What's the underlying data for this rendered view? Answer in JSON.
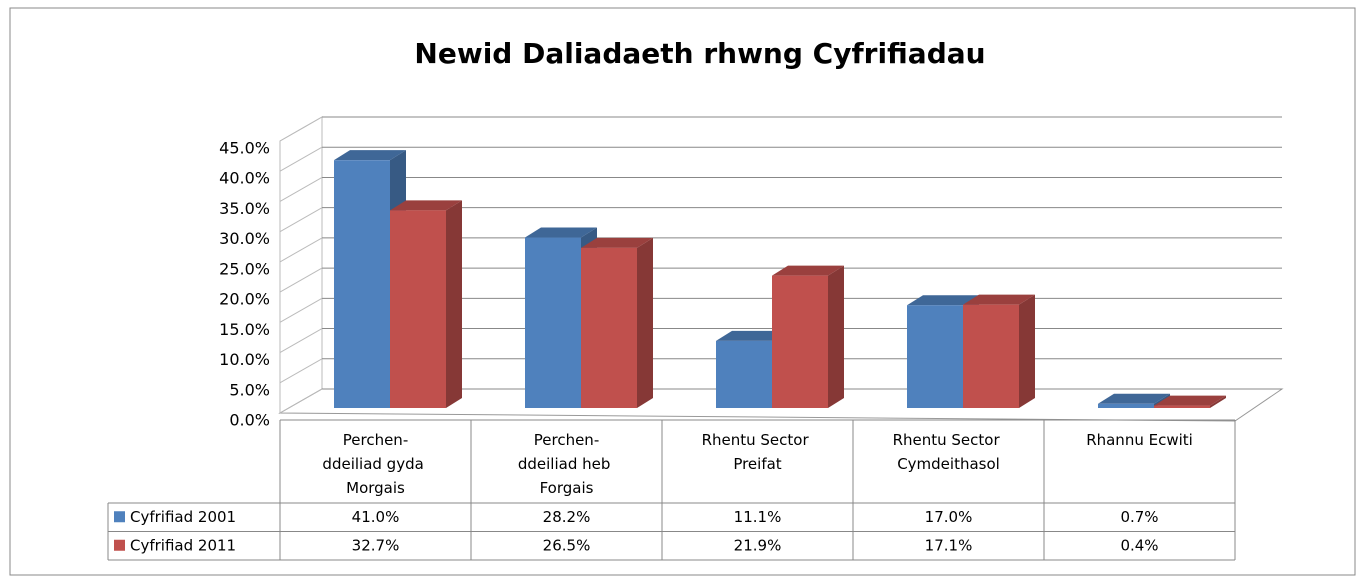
{
  "chart_data": {
    "type": "bar3d",
    "title": "Newid Daliadaeth rhwng Cyfrifiadau",
    "categories": [
      "Perchen-ddeiliad gyda Morgais",
      "Perchen-ddeiliad heb Forgais",
      "Rhentu Sector Preifat",
      "Rhentu Sector Cymdeithasol",
      "Rhannu Ecwiti"
    ],
    "series": [
      {
        "name": "Cyfrifiad 2001",
        "color": "#4f81bd",
        "values": [
          41.0,
          28.2,
          11.1,
          17.0,
          0.7
        ],
        "value_labels": [
          "41.0%",
          "28.2%",
          "11.1%",
          "17.0%",
          "0.7%"
        ]
      },
      {
        "name": "Cyfrifiad 2011",
        "color": "#c0504d",
        "values": [
          32.7,
          26.5,
          21.9,
          17.1,
          0.4
        ],
        "value_labels": [
          "32.7%",
          "26.5%",
          "21.9%",
          "17.1%",
          "0.4%"
        ]
      }
    ],
    "ylim": [
      0,
      45
    ],
    "yticks": [
      {
        "value": 0,
        "label": "0.0%"
      },
      {
        "value": 5,
        "label": "5.0%"
      },
      {
        "value": 10,
        "label": "10.0%"
      },
      {
        "value": 15,
        "label": "15.0%"
      },
      {
        "value": 20,
        "label": "20.0%"
      },
      {
        "value": 25,
        "label": "25.0%"
      },
      {
        "value": 30,
        "label": "30.0%"
      },
      {
        "value": 35,
        "label": "35.0%"
      },
      {
        "value": 40,
        "label": "40.0%"
      },
      {
        "value": 45,
        "label": "45.0%"
      }
    ],
    "grid": true
  }
}
